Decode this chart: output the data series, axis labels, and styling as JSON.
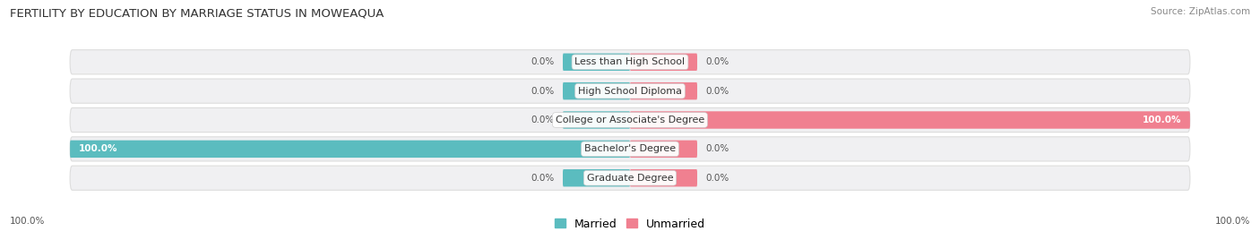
{
  "title": "FERTILITY BY EDUCATION BY MARRIAGE STATUS IN MOWEAQUA",
  "source": "Source: ZipAtlas.com",
  "categories": [
    "Less than High School",
    "High School Diploma",
    "College or Associate's Degree",
    "Bachelor's Degree",
    "Graduate Degree"
  ],
  "married_values": [
    0.0,
    0.0,
    0.0,
    100.0,
    0.0
  ],
  "unmarried_values": [
    0.0,
    0.0,
    100.0,
    0.0,
    0.0
  ],
  "married_color": "#5bbcbf",
  "unmarried_color": "#f08090",
  "row_bg_color": "#f0f0f2",
  "row_border_color": "#dddddd",
  "title_fontsize": 9.5,
  "source_fontsize": 7.5,
  "label_fontsize": 8,
  "value_fontsize": 7.5,
  "axis_label": "100.0%",
  "xlim": 100,
  "bar_height": 0.6,
  "min_stub": 12,
  "legend_married": "Married",
  "legend_unmarried": "Unmarried"
}
